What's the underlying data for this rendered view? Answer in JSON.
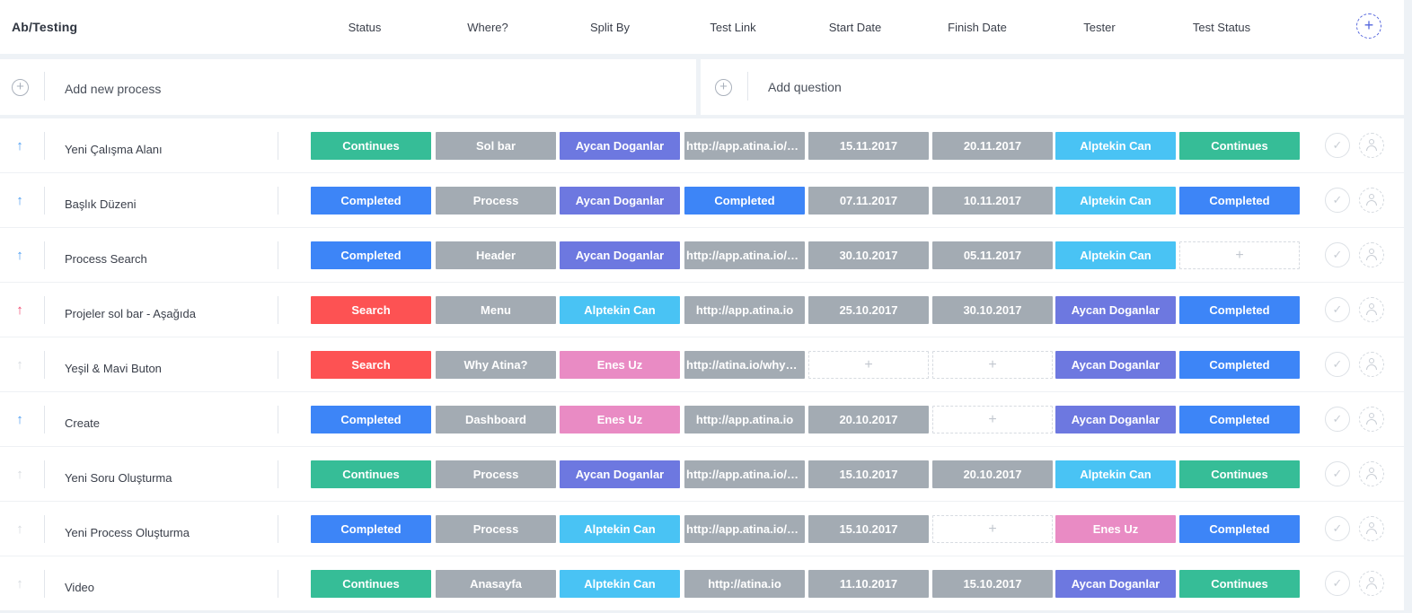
{
  "header": {
    "title": "Ab/Testing",
    "columns": [
      "Status",
      "Where?",
      "Split By",
      "Test Link",
      "Start Date",
      "Finish Date",
      "Tester",
      "Test Status"
    ],
    "add_column_icon": "plus-circle-icon",
    "add_column_symbol": "+"
  },
  "add_process": {
    "placeholder": "Add new process",
    "icon": "plus-circle-icon",
    "symbol": "+"
  },
  "add_question": {
    "placeholder": "Add question",
    "icon": "plus-circle-icon",
    "symbol": "+"
  },
  "colors": {
    "teal": "#36bd97",
    "blue": "#3d85f7",
    "red": "#fd5253",
    "gray": "#a3abb3",
    "indigo": "#6d78e0",
    "sky": "#49c3f4",
    "pink": "#e98bc4",
    "arrow_blue": "#4a9cf2",
    "arrow_red": "#f0466e",
    "arrow_gray": "#d5d9de"
  },
  "icons": {
    "arrow": "arrow-up-icon",
    "check": "check-circle-icon",
    "assign": "user-circle-icon",
    "empty_cell": "plus-icon"
  },
  "empty_cell_symbol": "+",
  "check_symbol": "✓",
  "arrow_symbol": "↑",
  "rows": [
    {
      "name": "Yeni Çalışma Alanı",
      "priority": "blue",
      "cells": [
        {
          "text": "Continues",
          "color": "teal"
        },
        {
          "text": "Sol bar",
          "color": "gray"
        },
        {
          "text": "Aycan Doganlar",
          "color": "indigo"
        },
        {
          "text": "http://app.atina.io/pr...",
          "color": "gray"
        },
        {
          "text": "15.11.2017",
          "color": "gray"
        },
        {
          "text": "20.11.2017",
          "color": "gray"
        },
        {
          "text": "Alptekin Can",
          "color": "sky"
        },
        {
          "text": "Continues",
          "color": "teal"
        }
      ]
    },
    {
      "name": "Başlık Düzeni",
      "priority": "blue",
      "cells": [
        {
          "text": "Completed",
          "color": "blue"
        },
        {
          "text": "Process",
          "color": "gray"
        },
        {
          "text": "Aycan Doganlar",
          "color": "indigo"
        },
        {
          "text": "Completed",
          "color": "blue"
        },
        {
          "text": "07.11.2017",
          "color": "gray"
        },
        {
          "text": "10.11.2017",
          "color": "gray"
        },
        {
          "text": "Alptekin Can",
          "color": "sky"
        },
        {
          "text": "Completed",
          "color": "blue"
        }
      ]
    },
    {
      "name": "Process Search",
      "priority": "blue",
      "cells": [
        {
          "text": "Completed",
          "color": "blue"
        },
        {
          "text": "Header",
          "color": "gray"
        },
        {
          "text": "Aycan Doganlar",
          "color": "indigo"
        },
        {
          "text": "http://app.atina.io/pr...",
          "color": "gray"
        },
        {
          "text": "30.10.2017",
          "color": "gray"
        },
        {
          "text": "05.11.2017",
          "color": "gray"
        },
        {
          "text": "Alptekin Can",
          "color": "sky"
        },
        {
          "text": "",
          "color": "empty"
        }
      ]
    },
    {
      "name": "Projeler sol bar - Aşağıda",
      "priority": "red",
      "cells": [
        {
          "text": "Search",
          "color": "red"
        },
        {
          "text": "Menu",
          "color": "gray"
        },
        {
          "text": "Alptekin Can",
          "color": "sky"
        },
        {
          "text": "http://app.atina.io",
          "color": "gray"
        },
        {
          "text": "25.10.2017",
          "color": "gray"
        },
        {
          "text": "30.10.2017",
          "color": "gray"
        },
        {
          "text": "Aycan Doganlar",
          "color": "indigo"
        },
        {
          "text": "Completed",
          "color": "blue"
        }
      ]
    },
    {
      "name": "Yeşil & Mavi Buton",
      "priority": "gray",
      "cells": [
        {
          "text": "Search",
          "color": "red"
        },
        {
          "text": "Why Atina?",
          "color": "gray"
        },
        {
          "text": "Enes Uz",
          "color": "pink"
        },
        {
          "text": "http://atina.io/whyatina",
          "color": "gray"
        },
        {
          "text": "",
          "color": "empty"
        },
        {
          "text": "",
          "color": "empty"
        },
        {
          "text": "Aycan Doganlar",
          "color": "indigo"
        },
        {
          "text": "Completed",
          "color": "blue"
        }
      ]
    },
    {
      "name": "Create",
      "priority": "blue",
      "cells": [
        {
          "text": "Completed",
          "color": "blue"
        },
        {
          "text": "Dashboard",
          "color": "gray"
        },
        {
          "text": "Enes Uz",
          "color": "pink"
        },
        {
          "text": "http://app.atina.io",
          "color": "gray"
        },
        {
          "text": "20.10.2017",
          "color": "gray"
        },
        {
          "text": "",
          "color": "empty"
        },
        {
          "text": "Aycan Doganlar",
          "color": "indigo"
        },
        {
          "text": "Completed",
          "color": "blue"
        }
      ]
    },
    {
      "name": "Yeni Soru Oluşturma",
      "priority": "gray",
      "cells": [
        {
          "text": "Continues",
          "color": "teal"
        },
        {
          "text": "Process",
          "color": "gray"
        },
        {
          "text": "Aycan Doganlar",
          "color": "indigo"
        },
        {
          "text": "http://app.atina.io/pr...",
          "color": "gray"
        },
        {
          "text": "15.10.2017",
          "color": "gray"
        },
        {
          "text": "20.10.2017",
          "color": "gray"
        },
        {
          "text": "Alptekin Can",
          "color": "sky"
        },
        {
          "text": "Continues",
          "color": "teal"
        }
      ]
    },
    {
      "name": "Yeni Process Oluşturma",
      "priority": "gray",
      "cells": [
        {
          "text": "Completed",
          "color": "blue"
        },
        {
          "text": "Process",
          "color": "gray"
        },
        {
          "text": "Alptekin Can",
          "color": "sky"
        },
        {
          "text": "http://app.atina.io/pr...",
          "color": "gray"
        },
        {
          "text": "15.10.2017",
          "color": "gray"
        },
        {
          "text": "",
          "color": "empty"
        },
        {
          "text": "Enes Uz",
          "color": "pink"
        },
        {
          "text": "Completed",
          "color": "blue"
        }
      ]
    },
    {
      "name": "Video",
      "priority": "gray",
      "cells": [
        {
          "text": "Continues",
          "color": "teal"
        },
        {
          "text": "Anasayfa",
          "color": "gray"
        },
        {
          "text": "Alptekin Can",
          "color": "sky"
        },
        {
          "text": "http://atina.io",
          "color": "gray"
        },
        {
          "text": "11.10.2017",
          "color": "gray"
        },
        {
          "text": "15.10.2017",
          "color": "gray"
        },
        {
          "text": "Aycan Doganlar",
          "color": "indigo"
        },
        {
          "text": "Continues",
          "color": "teal"
        }
      ]
    }
  ]
}
